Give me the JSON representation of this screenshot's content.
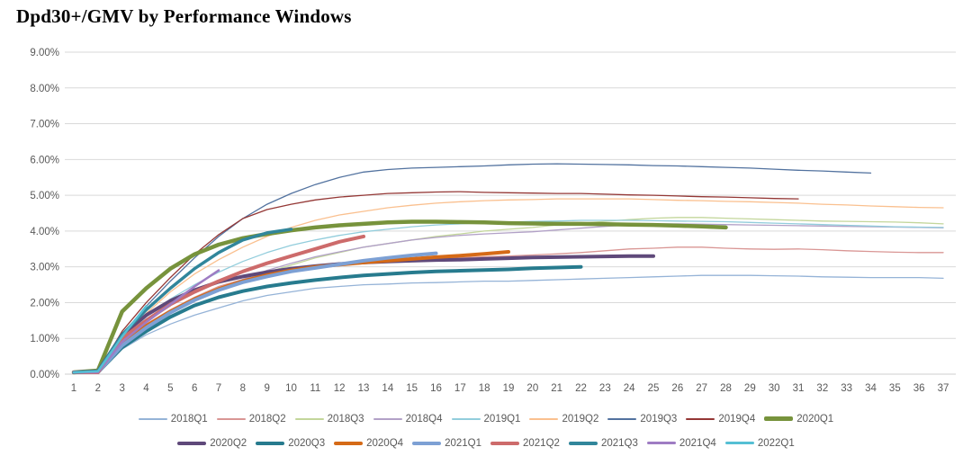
{
  "title": "Dpd30+/GMV by Performance Windows",
  "colors": {
    "axis_text": "#595959",
    "gridline": "#d9d9d9",
    "baseline": "#cfcfcf",
    "title_text": "#000000",
    "background": "#ffffff"
  },
  "chart_data": {
    "type": "line",
    "title": "Dpd30+/GMV by Performance Windows",
    "xlabel": "",
    "ylabel": "",
    "ylim": [
      0,
      9
    ],
    "grid": true,
    "legend_position": "bottom",
    "x_ticks": [
      1,
      2,
      3,
      4,
      5,
      6,
      7,
      8,
      9,
      10,
      11,
      12,
      13,
      14,
      15,
      16,
      17,
      18,
      19,
      20,
      21,
      22,
      23,
      24,
      25,
      26,
      27,
      28,
      29,
      30,
      31,
      32,
      33,
      34,
      35,
      36,
      37
    ],
    "yticks": [
      "0.00%",
      "1.00%",
      "2.00%",
      "3.00%",
      "4.00%",
      "5.00%",
      "6.00%",
      "7.00%",
      "8.00%",
      "9.00%"
    ],
    "series": [
      {
        "name": "2018Q1",
        "color": "#95b3d7",
        "width": 1.3,
        "values": [
          0.05,
          0.05,
          0.7,
          1.1,
          1.4,
          1.65,
          1.85,
          2.05,
          2.2,
          2.3,
          2.4,
          2.45,
          2.5,
          2.52,
          2.55,
          2.56,
          2.58,
          2.6,
          2.6,
          2.62,
          2.64,
          2.66,
          2.68,
          2.7,
          2.72,
          2.74,
          2.76,
          2.76,
          2.76,
          2.75,
          2.74,
          2.72,
          2.71,
          2.7,
          2.7,
          2.7,
          2.68
        ]
      },
      {
        "name": "2018Q2",
        "color": "#d99694",
        "width": 1.3,
        "values": [
          0.05,
          0.05,
          0.9,
          1.4,
          1.8,
          2.15,
          2.45,
          2.65,
          2.8,
          2.9,
          2.98,
          3.05,
          3.1,
          3.15,
          3.2,
          3.22,
          3.25,
          3.28,
          3.3,
          3.33,
          3.36,
          3.4,
          3.45,
          3.5,
          3.52,
          3.55,
          3.55,
          3.52,
          3.5,
          3.49,
          3.5,
          3.48,
          3.45,
          3.43,
          3.41,
          3.4,
          3.4
        ]
      },
      {
        "name": "2018Q3",
        "color": "#c3d69b",
        "width": 1.3,
        "values": [
          0.05,
          0.05,
          0.8,
          1.3,
          1.7,
          2.05,
          2.35,
          2.6,
          2.85,
          3.05,
          3.25,
          3.4,
          3.55,
          3.65,
          3.75,
          3.85,
          3.92,
          4.0,
          4.05,
          4.1,
          4.17,
          4.22,
          4.27,
          4.32,
          4.36,
          4.38,
          4.38,
          4.36,
          4.34,
          4.32,
          4.3,
          4.28,
          4.27,
          4.26,
          4.25,
          4.23,
          4.2
        ]
      },
      {
        "name": "2018Q4",
        "color": "#b2a1c7",
        "width": 1.3,
        "values": [
          0.05,
          0.05,
          0.85,
          1.35,
          1.75,
          2.1,
          2.4,
          2.65,
          2.9,
          3.1,
          3.28,
          3.42,
          3.55,
          3.65,
          3.75,
          3.82,
          3.88,
          3.92,
          3.95,
          3.98,
          4.03,
          4.08,
          4.13,
          4.17,
          4.2,
          4.2,
          4.19,
          4.18,
          4.17,
          4.16,
          4.15,
          4.14,
          4.13,
          4.12,
          4.11,
          4.1,
          4.09
        ]
      },
      {
        "name": "2019Q1",
        "color": "#92cddc",
        "width": 1.3,
        "values": [
          0.05,
          0.08,
          1.0,
          1.6,
          2.1,
          2.5,
          2.85,
          3.15,
          3.4,
          3.6,
          3.75,
          3.88,
          3.98,
          4.05,
          4.12,
          4.17,
          4.2,
          4.23,
          4.25,
          4.27,
          4.28,
          4.3,
          4.3,
          4.3,
          4.29,
          4.28,
          4.27,
          4.26,
          4.24,
          4.22,
          4.2,
          4.18,
          4.16,
          4.14,
          4.12,
          4.11,
          4.1
        ]
      },
      {
        "name": "2019Q2",
        "color": "#fac08f",
        "width": 1.3,
        "values": [
          0.05,
          0.08,
          1.0,
          1.7,
          2.3,
          2.8,
          3.2,
          3.55,
          3.85,
          4.1,
          4.3,
          4.45,
          4.55,
          4.65,
          4.72,
          4.78,
          4.82,
          4.85,
          4.87,
          4.88,
          4.9,
          4.9,
          4.9,
          4.9,
          4.88,
          4.86,
          4.85,
          4.83,
          4.82,
          4.8,
          4.78,
          4.75,
          4.73,
          4.7,
          4.68,
          4.66,
          4.65
        ]
      },
      {
        "name": "2019Q3",
        "color": "#52729f",
        "width": 1.3,
        "values": [
          0.05,
          0.08,
          1.1,
          1.9,
          2.6,
          3.25,
          3.85,
          4.35,
          4.75,
          5.05,
          5.3,
          5.5,
          5.65,
          5.72,
          5.76,
          5.78,
          5.8,
          5.82,
          5.85,
          5.87,
          5.88,
          5.87,
          5.86,
          5.85,
          5.83,
          5.82,
          5.8,
          5.78,
          5.76,
          5.73,
          5.7,
          5.68,
          5.65,
          5.62
        ]
      },
      {
        "name": "2019Q4",
        "color": "#943735",
        "width": 1.3,
        "values": [
          0.05,
          0.05,
          1.2,
          2.0,
          2.7,
          3.35,
          3.9,
          4.35,
          4.6,
          4.75,
          4.87,
          4.95,
          5.0,
          5.05,
          5.07,
          5.09,
          5.1,
          5.08,
          5.07,
          5.06,
          5.05,
          5.05,
          5.03,
          5.01,
          5.0,
          4.98,
          4.96,
          4.95,
          4.93,
          4.91,
          4.9
        ]
      },
      {
        "name": "2020Q1",
        "color": "#77933c",
        "width": 4.5,
        "values": [
          0.05,
          0.1,
          1.75,
          2.4,
          2.95,
          3.35,
          3.62,
          3.8,
          3.92,
          4.02,
          4.1,
          4.16,
          4.2,
          4.24,
          4.26,
          4.26,
          4.25,
          4.24,
          4.22,
          4.21,
          4.2,
          4.2,
          4.19,
          4.18,
          4.17,
          4.15,
          4.13,
          4.1
        ]
      },
      {
        "name": "2020Q2",
        "color": "#5f497a",
        "width": 4,
        "values": [
          0.05,
          0.08,
          1.1,
          1.65,
          2.05,
          2.35,
          2.58,
          2.73,
          2.85,
          2.95,
          3.02,
          3.08,
          3.12,
          3.15,
          3.17,
          3.19,
          3.2,
          3.22,
          3.24,
          3.26,
          3.27,
          3.28,
          3.29,
          3.3,
          3.3
        ]
      },
      {
        "name": "2020Q3",
        "color": "#277b8e",
        "width": 4,
        "values": [
          0.05,
          0.05,
          0.75,
          1.2,
          1.6,
          1.92,
          2.15,
          2.32,
          2.45,
          2.55,
          2.63,
          2.7,
          2.76,
          2.8,
          2.84,
          2.87,
          2.89,
          2.91,
          2.93,
          2.96,
          2.98,
          3.0
        ]
      },
      {
        "name": "2020Q4",
        "color": "#d56a17",
        "width": 4,
        "values": [
          0.05,
          0.05,
          0.85,
          1.35,
          1.75,
          2.1,
          2.38,
          2.6,
          2.77,
          2.9,
          3.0,
          3.06,
          3.12,
          3.17,
          3.22,
          3.27,
          3.31,
          3.36,
          3.42
        ]
      },
      {
        "name": "2021Q1",
        "color": "#7da0d4",
        "width": 4,
        "values": [
          0.05,
          0.05,
          0.8,
          1.3,
          1.72,
          2.07,
          2.35,
          2.57,
          2.73,
          2.87,
          2.97,
          3.07,
          3.17,
          3.25,
          3.32,
          3.38
        ]
      },
      {
        "name": "2021Q2",
        "color": "#cd6b6b",
        "width": 4,
        "values": [
          0.05,
          0.05,
          1.0,
          1.5,
          1.95,
          2.3,
          2.6,
          2.87,
          3.1,
          3.3,
          3.5,
          3.7,
          3.85
        ]
      },
      {
        "name": "2021Q3",
        "color": "#31869b",
        "width": 3.5,
        "values": [
          0.05,
          0.08,
          1.1,
          1.8,
          2.4,
          2.95,
          3.4,
          3.75,
          3.95,
          4.05
        ]
      },
      {
        "name": "2021Q4",
        "color": "#9e7cc3",
        "width": 2.5,
        "values": [
          0.05,
          0.05,
          0.9,
          1.45,
          1.95,
          2.45,
          2.9
        ]
      },
      {
        "name": "2022Q1",
        "color": "#55bfd4",
        "width": 2.5,
        "values": [
          0.05,
          0.08,
          1.05,
          1.9
        ]
      }
    ],
    "legend_rows": [
      [
        0,
        1,
        2,
        3,
        4,
        5,
        6,
        7,
        8
      ],
      [
        9,
        10,
        11,
        12,
        13,
        14,
        15,
        16
      ]
    ]
  }
}
